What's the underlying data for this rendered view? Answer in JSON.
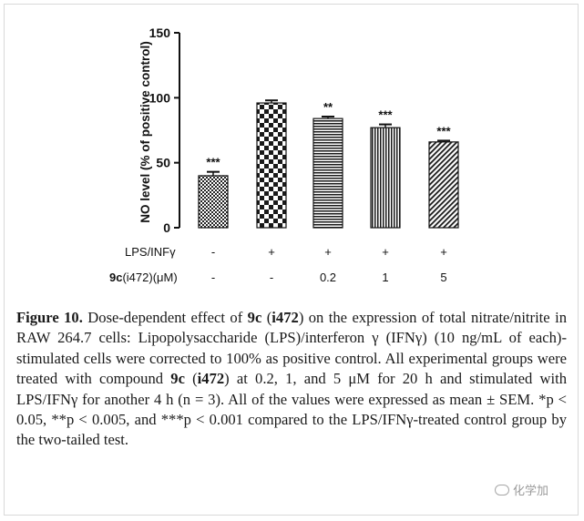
{
  "chart_data": {
    "type": "bar",
    "ylabel": "NO level (% of positive control)",
    "ylim": [
      0,
      150
    ],
    "yticks": [
      0,
      50,
      100,
      150
    ],
    "ytick_labels": [
      "0",
      "50",
      "100",
      "150"
    ],
    "grid": false,
    "categories": [
      "-/-",
      "+/-",
      "+/0.2",
      "+/1",
      "+/5"
    ],
    "values": [
      40,
      96,
      84,
      77,
      66
    ],
    "errors": [
      3,
      2,
      1.5,
      2.5,
      1
    ],
    "significance": [
      "***",
      "",
      "**",
      "***",
      "***"
    ],
    "patterns": [
      "dense-hatch",
      "checkerboard",
      "horizontal-stripes",
      "vertical-stripes",
      "diagonal-stripes"
    ],
    "rows": [
      {
        "label": "LPS/INFγ",
        "values": [
          "-",
          "+",
          "+",
          "+",
          "+"
        ]
      },
      {
        "label_bold": "9c",
        "label_rest": "(i472)(μM)",
        "values": [
          "-",
          "-",
          "0.2",
          "1",
          "5"
        ]
      }
    ]
  },
  "caption": {
    "label": "Figure 10.",
    "t1": " Dose-dependent effect of ",
    "c1": "9c",
    "t2": " (",
    "c2": "i472",
    "t3": ") on the expression of total nitrate/nitrite in RAW 264.7 cells: Lipopolysaccharide (LPS)/interferon γ (IFNγ) (10 ng/mL of each)-stimulated cells were corrected to 100% as positive control. All experimental groups were treated with compound ",
    "c3": "9c",
    "t4": " (",
    "c4": "i472",
    "t5": ") at 0.2, 1, and 5 μM for 20 h and stimulated with LPS/IFNγ for another 4 h (n = 3). All of the values were expressed as mean ± SEM. *p < 0.05, **p < 0.005, and ***p < 0.001 compared to the LPS/IFNγ-treated control group by the two-tailed test."
  },
  "watermark": {
    "text": "化学加",
    "icon": "wechat-icon"
  }
}
